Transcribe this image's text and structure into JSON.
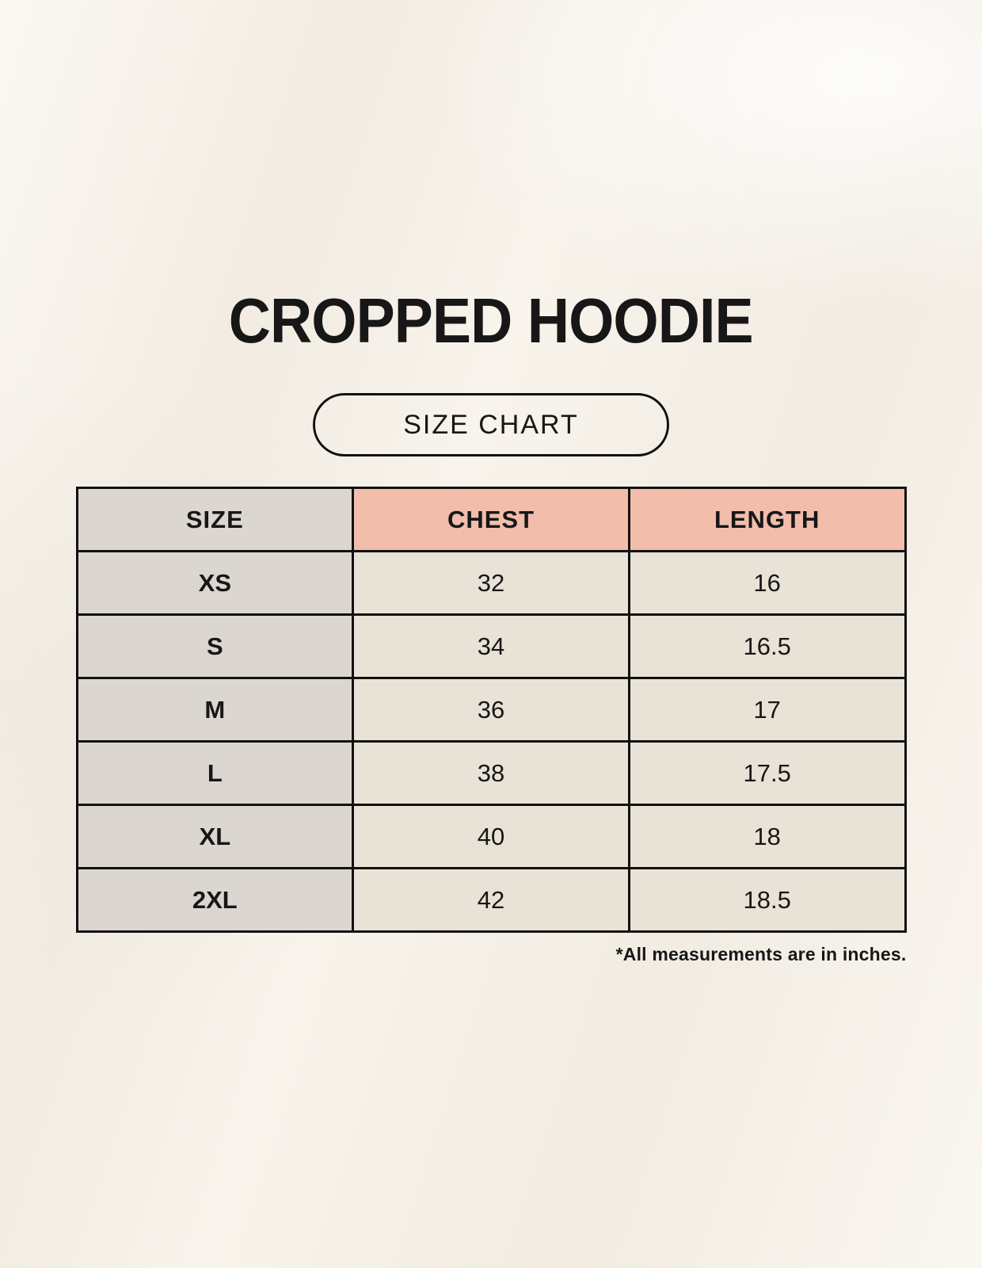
{
  "page": {
    "title": "CROPPED HOODIE",
    "badge_label": "SIZE CHART",
    "footnote": "*All measurements are in inches."
  },
  "chart_data": {
    "type": "table",
    "title": "CROPPED HOODIE size chart",
    "columns": [
      "SIZE",
      "CHEST",
      "LENGTH"
    ],
    "rows": [
      [
        "XS",
        "32",
        "16"
      ],
      [
        "S",
        "34",
        "16.5"
      ],
      [
        "M",
        "36",
        "17"
      ],
      [
        "L",
        "38",
        "17.5"
      ],
      [
        "XL",
        "40",
        "18"
      ],
      [
        "2XL",
        "42",
        "18.5"
      ]
    ],
    "units": "inches"
  },
  "colors": {
    "page_bg": "#f7f2ea",
    "size_bg": "#dcd6d1",
    "measure_header_bg": "#f2bdab",
    "cell_bg": "#e9e2d6",
    "border": "#111111",
    "text": "#171717"
  }
}
